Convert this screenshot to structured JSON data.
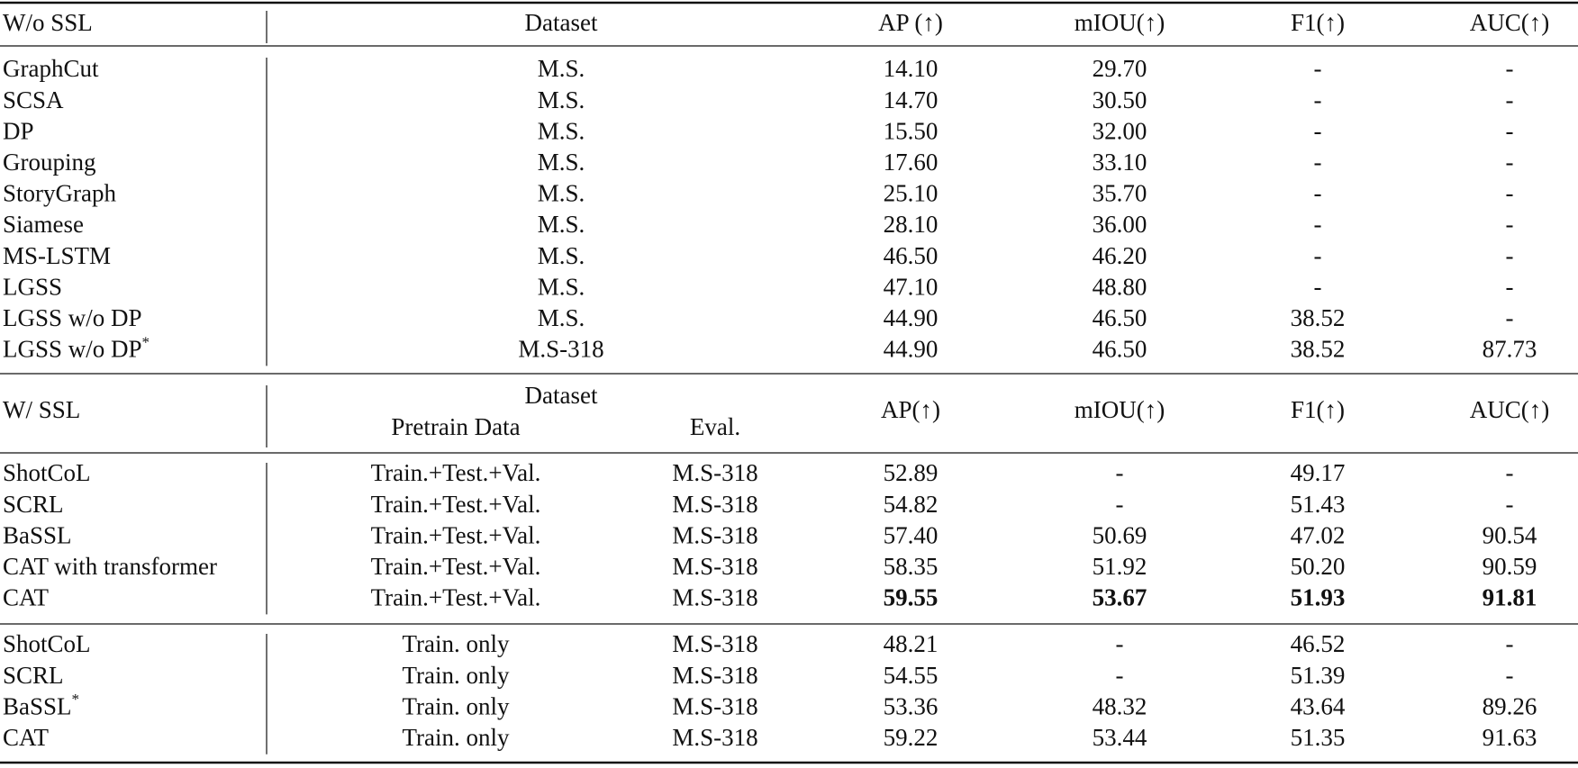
{
  "sections": [
    {
      "header": {
        "method": "W/o SSL",
        "dataset": "Dataset",
        "metrics": [
          "AP (↑)",
          "mIOU(↑)",
          "F1(↑)",
          "AUC(↑)"
        ]
      },
      "groups": [
        {
          "rows": [
            [
              "GraphCut",
              "M.S.",
              "14.10",
              "29.70",
              "-",
              "-"
            ],
            [
              "SCSA",
              "M.S.",
              "14.70",
              "30.50",
              "-",
              "-"
            ],
            [
              "DP",
              "M.S.",
              "15.50",
              "32.00",
              "-",
              "-"
            ],
            [
              "Grouping",
              "M.S.",
              "17.60",
              "33.10",
              "-",
              "-"
            ],
            [
              "StoryGraph",
              "M.S.",
              "25.10",
              "35.70",
              "-",
              "-"
            ],
            [
              "Siamese",
              "M.S.",
              "28.10",
              "36.00",
              "-",
              "-"
            ],
            [
              "MS-LSTM",
              "M.S.",
              "46.50",
              "46.20",
              "-",
              "-"
            ],
            [
              "LGSS",
              "M.S.",
              "47.10",
              "48.80",
              "-",
              "-"
            ],
            [
              "LGSS w/o DP",
              "M.S.",
              "44.90",
              "46.50",
              "38.52",
              "-"
            ],
            [
              "LGSS w/o DP*",
              "M.S-318",
              "44.90",
              "46.50",
              "38.52",
              "87.73"
            ]
          ]
        }
      ]
    },
    {
      "header": {
        "method": "W/ SSL",
        "dataset": "Dataset",
        "pretrain": "Pretrain Data",
        "eval": "Eval.",
        "metrics": [
          "AP(↑)",
          "mIOU(↑)",
          "F1(↑)",
          "AUC(↑)"
        ]
      },
      "groups": [
        {
          "rows": [
            [
              "ShotCoL",
              "Train.+Test.+Val.",
              "M.S-318",
              "52.89",
              "-",
              "49.17",
              "-"
            ],
            [
              "SCRL",
              "Train.+Test.+Val.",
              "M.S-318",
              "54.82",
              "-",
              "51.43",
              "-"
            ],
            [
              "BaSSL",
              "Train.+Test.+Val.",
              "M.S-318",
              "57.40",
              "50.69",
              "47.02",
              "90.54"
            ],
            [
              "CAT with transformer",
              "Train.+Test.+Val.",
              "M.S-318",
              "58.35",
              "51.92",
              "50.20",
              "90.59"
            ],
            [
              "CAT",
              "Train.+Test.+Val.",
              "M.S-318",
              "59.55",
              "53.67",
              "51.93",
              "91.81"
            ]
          ],
          "bold_row": 4
        },
        {
          "rows": [
            [
              "ShotCoL",
              "Train. only",
              "M.S-318",
              "48.21",
              "-",
              "46.52",
              "-"
            ],
            [
              "SCRL",
              "Train. only",
              "M.S-318",
              "54.55",
              "-",
              "51.39",
              "-"
            ],
            [
              "BaSSL*",
              "Train. only",
              "M.S-318",
              "53.36",
              "48.32",
              "43.64",
              "89.26"
            ],
            [
              "CAT",
              "Train. only",
              "M.S-318",
              "59.22",
              "53.44",
              "51.35",
              "91.63"
            ]
          ]
        }
      ]
    }
  ]
}
